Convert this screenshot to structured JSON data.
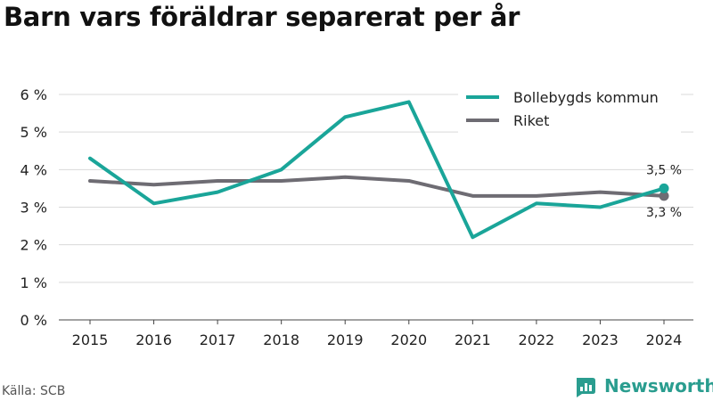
{
  "title": "Barn vars föräldrar separerat per år",
  "source": "Källa: SCB",
  "brand": "Newsworthy",
  "colors": {
    "series1": "#1aa599",
    "series2": "#6e6c73",
    "brand": "#2a9d8f"
  },
  "chart_data": {
    "type": "line",
    "title": "Barn vars föräldrar separerat per år",
    "xlabel": "",
    "ylabel": "",
    "x": [
      "2015",
      "2016",
      "2017",
      "2018",
      "2019",
      "2020",
      "2021",
      "2022",
      "2023",
      "2024"
    ],
    "y_ticks": [
      "0 %",
      "1 %",
      "2 %",
      "3 %",
      "4 %",
      "5 %",
      "6 %"
    ],
    "ylim": [
      0,
      6
    ],
    "grid": "horizontal",
    "legend": "top-right",
    "series": [
      {
        "name": "Bollebygds kommun",
        "values": [
          4.3,
          3.1,
          3.4,
          4.0,
          5.4,
          5.8,
          2.2,
          3.1,
          3.0,
          3.5
        ],
        "end_label": "3,5 %"
      },
      {
        "name": "Riket",
        "values": [
          3.7,
          3.6,
          3.7,
          3.7,
          3.8,
          3.7,
          3.3,
          3.3,
          3.4,
          3.3
        ],
        "end_label": "3,3 %"
      }
    ]
  }
}
